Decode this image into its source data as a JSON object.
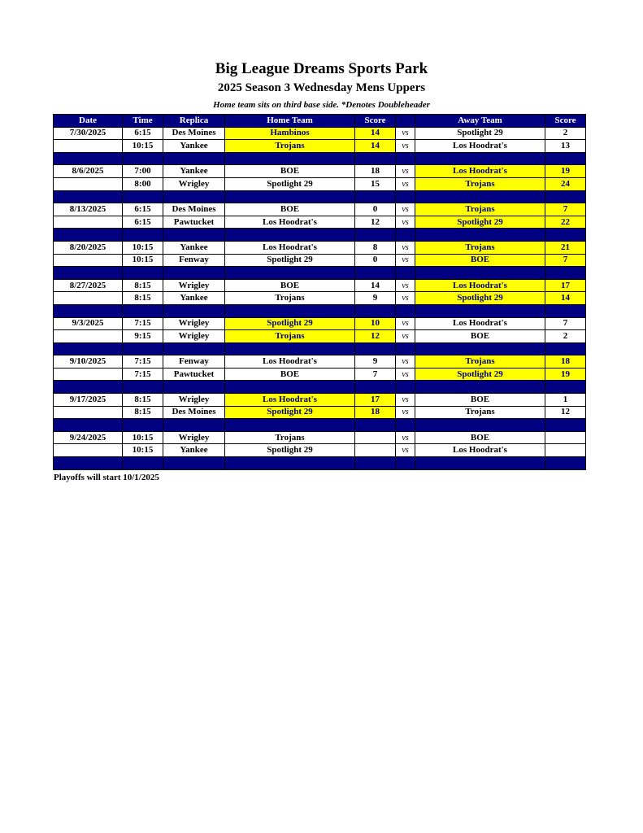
{
  "title": "Big League Dreams Sports Park",
  "subtitle": "2025 Season 3 Wednesday Mens Uppers",
  "note": "Home team sits on third base side.  *Denotes Doubleheader",
  "colors": {
    "header_bg": "#000080",
    "winner_bg": "#ffff00",
    "winner_text": "#000080"
  },
  "columns": [
    "Date",
    "Time",
    "Replica",
    "Home Team",
    "Score",
    "",
    "Away Team",
    "Score"
  ],
  "vs_label": "vs",
  "groups": [
    {
      "date": "7/30/2025",
      "games": [
        {
          "time": "6:15",
          "replica": "Des Moines",
          "home": "Hambinos",
          "home_score": "14",
          "away": "Spotlight 29",
          "away_score": "2",
          "winner": "home"
        },
        {
          "time": "10:15",
          "replica": "Yankee",
          "home": "Trojans",
          "home_score": "14",
          "away": "Los Hoodrat's",
          "away_score": "13",
          "winner": "home"
        }
      ]
    },
    {
      "date": "8/6/2025",
      "games": [
        {
          "time": "7:00",
          "replica": "Yankee",
          "home": "BOE",
          "home_score": "18",
          "away": "Los Hoodrat's",
          "away_score": "19",
          "winner": "away"
        },
        {
          "time": "8:00",
          "replica": "Wrigley",
          "home": "Spotlight 29",
          "home_score": "15",
          "away": "Trojans",
          "away_score": "24",
          "winner": "away"
        }
      ]
    },
    {
      "date": "8/13/2025",
      "games": [
        {
          "time": "6:15",
          "replica": "Des Moines",
          "home": "BOE",
          "home_score": "0",
          "away": "Trojans",
          "away_score": "7",
          "winner": "away"
        },
        {
          "time": "6:15",
          "replica": "Pawtucket",
          "home": "Los Hoodrat's",
          "home_score": "12",
          "away": "Spotlight 29",
          "away_score": "22",
          "winner": "away"
        }
      ]
    },
    {
      "date": "8/20/2025",
      "games": [
        {
          "time": "10:15",
          "replica": "Yankee",
          "home": "Los Hoodrat's",
          "home_score": "8",
          "away": "Trojans",
          "away_score": "21",
          "winner": "away"
        },
        {
          "time": "10:15",
          "replica": "Fenway",
          "home": "Spotlight 29",
          "home_score": "0",
          "away": "BOE",
          "away_score": "7",
          "winner": "away"
        }
      ]
    },
    {
      "date": "8/27/2025",
      "games": [
        {
          "time": "8:15",
          "replica": "Wrigley",
          "home": "BOE",
          "home_score": "14",
          "away": "Los Hoodrat's",
          "away_score": "17",
          "winner": "away"
        },
        {
          "time": "8:15",
          "replica": "Yankee",
          "home": "Trojans",
          "home_score": "9",
          "away": "Spotlight 29",
          "away_score": "14",
          "winner": "away"
        }
      ]
    },
    {
      "date": "9/3/2025",
      "games": [
        {
          "time": "7:15",
          "replica": "Wrigley",
          "home": "Spotlight 29",
          "home_score": "10",
          "away": "Los Hoodrat's",
          "away_score": "7",
          "winner": "home"
        },
        {
          "time": "9:15",
          "replica": "Wrigley",
          "home": "Trojans",
          "home_score": "12",
          "away": "BOE",
          "away_score": "2",
          "winner": "home"
        }
      ]
    },
    {
      "date": "9/10/2025",
      "games": [
        {
          "time": "7:15",
          "replica": "Fenway",
          "home": "Los Hoodrat's",
          "home_score": "9",
          "away": "Trojans",
          "away_score": "18",
          "winner": "away"
        },
        {
          "time": "7:15",
          "replica": "Pawtucket",
          "home": "BOE",
          "home_score": "7",
          "away": "Spotlight 29",
          "away_score": "19",
          "winner": "away"
        }
      ]
    },
    {
      "date": "9/17/2025",
      "games": [
        {
          "time": "8:15",
          "replica": "Wrigley",
          "home": "Los Hoodrat's",
          "home_score": "17",
          "away": "BOE",
          "away_score": "1",
          "winner": "home"
        },
        {
          "time": "8:15",
          "replica": "Des Moines",
          "home": "Spotlight 29",
          "home_score": "18",
          "away": "Trojans",
          "away_score": "12",
          "winner": "home"
        }
      ]
    },
    {
      "date": "9/24/2025",
      "games": [
        {
          "time": "10:15",
          "replica": "Wrigley",
          "home": "Trojans",
          "home_score": "",
          "away": "BOE",
          "away_score": "",
          "winner": ""
        },
        {
          "time": "10:15",
          "replica": "Yankee",
          "home": "Spotlight 29",
          "home_score": "",
          "away": "Los Hoodrat's",
          "away_score": "",
          "winner": ""
        }
      ]
    }
  ],
  "footer": "Playoffs will start 10/1/2025"
}
